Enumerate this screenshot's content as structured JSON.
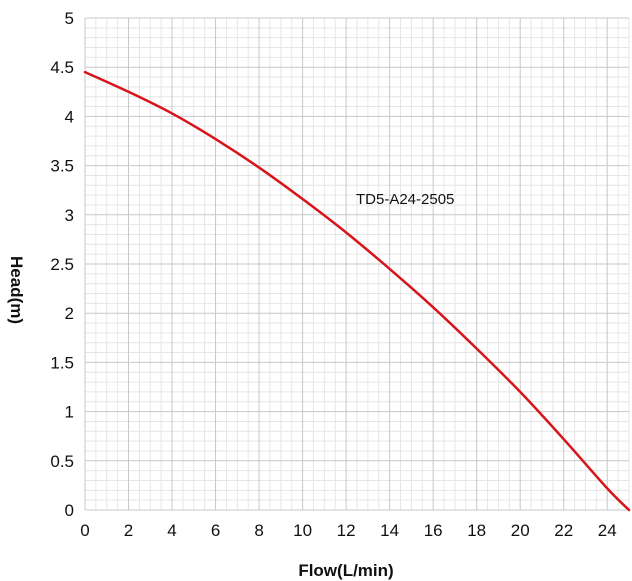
{
  "chart_data": {
    "type": "line",
    "title": "",
    "xlabel": "Flow(L/min)",
    "ylabel": "Head(m)",
    "xlim": [
      0,
      25
    ],
    "ylim": [
      0,
      5
    ],
    "x_ticks": [
      "0",
      "2",
      "4",
      "6",
      "8",
      "10",
      "12",
      "14",
      "16",
      "18",
      "20",
      "22",
      "24"
    ],
    "y_ticks": [
      "0",
      "0.5",
      "1",
      "1.5",
      "2",
      "2.5",
      "3",
      "3.5",
      "4",
      "4.5",
      "5"
    ],
    "grid": true,
    "colors": {
      "series": "#d7141a",
      "grid_major": "#c8c8c8",
      "grid_minor": "#e6e6e6"
    },
    "series": [
      {
        "name": "TD5-A24-2505",
        "x": [
          0,
          2,
          4,
          6,
          8,
          10,
          12,
          14,
          16,
          18,
          20,
          22,
          24,
          25
        ],
        "y": [
          4.45,
          4.25,
          4.03,
          3.77,
          3.48,
          3.16,
          2.82,
          2.45,
          2.06,
          1.64,
          1.2,
          0.72,
          0.22,
          0
        ]
      }
    ]
  }
}
